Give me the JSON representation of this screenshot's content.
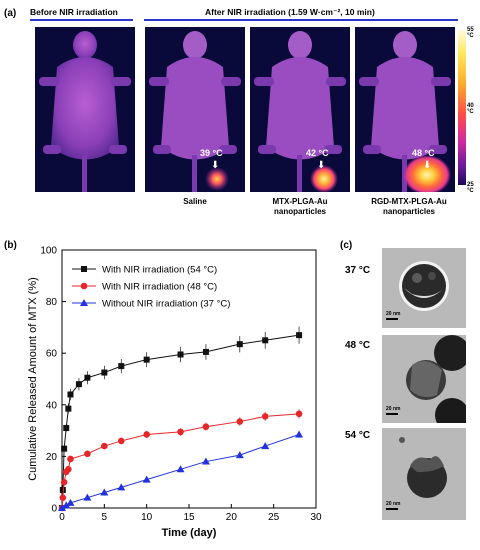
{
  "panel_a": {
    "label": "(a)",
    "header_before": "Before NIR irradiation",
    "header_after": "After NIR irradiation (1.59 W·cm⁻², 10 min)",
    "captions": [
      "Saline",
      "MTX-PLGA-Au",
      "nanoparticles",
      "RGD-MTX-PLGA-Au",
      "nanoparticles"
    ],
    "temps": [
      "39 °C",
      "42 °C",
      "48 °C"
    ],
    "colorbar": {
      "max": "55 °C",
      "mid": "40 °C",
      "min": "25 °C"
    }
  },
  "panel_c": {
    "label": "(c)",
    "images": [
      {
        "temp": "37 °C",
        "scale": "20 nm"
      },
      {
        "temp": "48 °C",
        "scale": "20 nm"
      },
      {
        "temp": "54 °C",
        "scale": "20 nm"
      }
    ]
  },
  "chart_data": {
    "type": "line",
    "panel_label": "(b)",
    "xlabel": "Time (day)",
    "ylabel": "Cumulative Released Amount of MTX (%)",
    "xlim": [
      0,
      30
    ],
    "ylim": [
      0,
      100
    ],
    "xticks": [
      "0",
      "5",
      "10",
      "15",
      "20",
      "25",
      "30"
    ],
    "yticks": [
      "0",
      "20",
      "40",
      "60",
      "80",
      "100"
    ],
    "legend_position": "top-left",
    "series": [
      {
        "name": "With NIR irradiation (54 °C)",
        "color": "#111111",
        "marker": "square",
        "x": [
          0,
          0.1,
          0.25,
          0.5,
          0.75,
          1,
          2,
          3,
          5,
          7,
          10,
          14,
          17,
          21,
          24,
          28
        ],
        "y": [
          0,
          7,
          23,
          31,
          38.5,
          44,
          48,
          50.5,
          52.5,
          55,
          57.5,
          59.5,
          60.5,
          63.5,
          65,
          67
        ]
      },
      {
        "name": "With NIR irradiation (48 °C)",
        "color": "#e8262a",
        "marker": "circle",
        "x": [
          0,
          0.1,
          0.25,
          0.5,
          0.75,
          1,
          3,
          5,
          7,
          10,
          14,
          17,
          21,
          24,
          28
        ],
        "y": [
          0,
          4,
          10,
          14,
          15,
          19,
          21,
          24,
          26,
          28.5,
          29.5,
          31.5,
          33.5,
          35.5,
          36.5
        ]
      },
      {
        "name": "Without NIR irradiation (37 °C)",
        "color": "#2233dd",
        "marker": "triangle",
        "x": [
          0,
          0.5,
          1,
          3,
          5,
          7,
          10,
          14,
          17,
          21,
          24,
          28
        ],
        "y": [
          0,
          1,
          2,
          4,
          6,
          8,
          11,
          15,
          18,
          20.5,
          24,
          28.5
        ]
      }
    ]
  }
}
